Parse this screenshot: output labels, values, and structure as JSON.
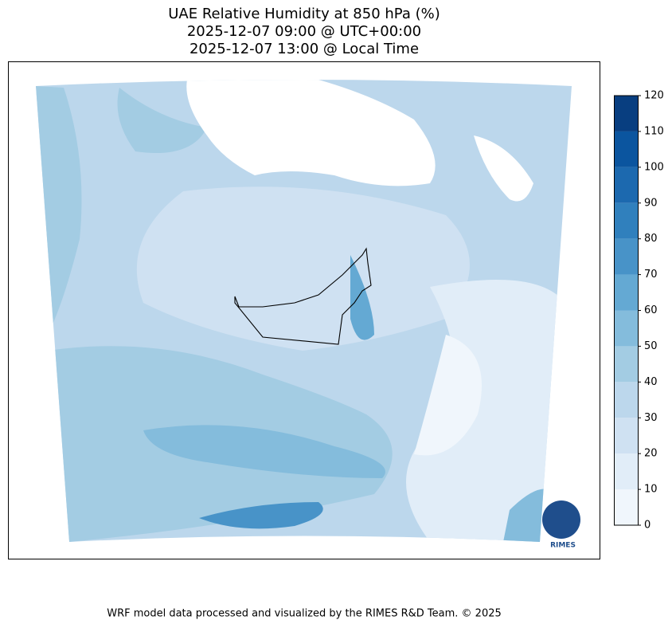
{
  "title": [
    "UAE Relative Humidity at 850 hPa (%)",
    "2025-12-07 09:00 @ UTC+00:00",
    "2025-12-07 13:00 @ Local Time"
  ],
  "colorbar": {
    "lim": [
      0,
      120
    ],
    "ticks": [
      0,
      10,
      20,
      30,
      40,
      50,
      60,
      70,
      80,
      90,
      100,
      110,
      120
    ],
    "colors": [
      "#f0f6fc",
      "#e1edf8",
      "#cfe1f2",
      "#bcd7ec",
      "#a3cce3",
      "#84bcdc",
      "#64a9d3",
      "#4893c8",
      "#3080bd",
      "#1c69af",
      "#0b559f",
      "#083e80"
    ]
  },
  "logo": "RIMES",
  "footer": "WRF model data processed and visualized by the RIMES R&D Team. © 2025"
}
